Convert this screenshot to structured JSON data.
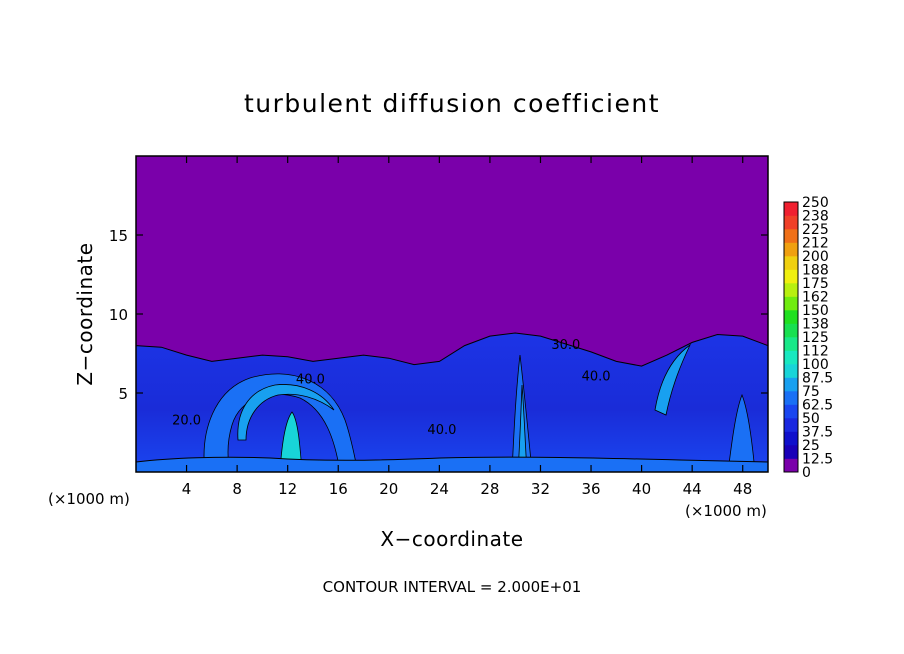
{
  "chart_data": {
    "type": "heatmap",
    "title": "turbulent diffusion coefficient",
    "xlabel": "X−coordinate",
    "ylabel": "Z−coordinate",
    "x_unit_left": "(×1000 m)",
    "x_unit_right": "(×1000 m)",
    "note": "CONTOUR INTERVAL = 2.000E+01",
    "xlim": [
      0,
      50
    ],
    "ylim": [
      0,
      20
    ],
    "x_ticks": [
      4,
      8,
      12,
      16,
      20,
      24,
      28,
      32,
      36,
      40,
      44,
      48
    ],
    "y_ticks": [
      5,
      10,
      15
    ],
    "x_tick_labels": [
      "4",
      "8",
      "12",
      "16",
      "20",
      "24",
      "28",
      "32",
      "36",
      "40",
      "44",
      "48"
    ],
    "y_tick_labels": [
      "5",
      "10",
      "15"
    ],
    "background_value": 0,
    "colorbar": {
      "levels": [
        0,
        12.5,
        25,
        37.5,
        50,
        62.5,
        75,
        87.5,
        100,
        112,
        125,
        138,
        150,
        162,
        175,
        188,
        200,
        212,
        225,
        238,
        250
      ],
      "labels": [
        "0",
        "12.5",
        "25",
        "37.5",
        "50",
        "62.5",
        "75",
        "87.5",
        "100",
        "112",
        "125",
        "138",
        "150",
        "162",
        "175",
        "188",
        "200",
        "212",
        "225",
        "238",
        "250"
      ],
      "colors": [
        "#7a00aa",
        "#1a00b8",
        "#1010cc",
        "#1a28e0",
        "#1a46f0",
        "#1a70f5",
        "#18a0f0",
        "#18d4d8",
        "#18e8c0",
        "#18e888",
        "#18e050",
        "#20e020",
        "#70ec10",
        "#b8f010",
        "#f0f010",
        "#f0d010",
        "#f0a010",
        "#f07018",
        "#f04028",
        "#f02030",
        "#f08080"
      ]
    },
    "boundary_layer_top": [
      [
        0,
        8.0
      ],
      [
        2,
        7.9
      ],
      [
        4,
        7.4
      ],
      [
        6,
        7.0
      ],
      [
        8,
        7.2
      ],
      [
        10,
        7.4
      ],
      [
        12,
        7.3
      ],
      [
        14,
        7.0
      ],
      [
        16,
        7.2
      ],
      [
        18,
        7.4
      ],
      [
        20,
        7.2
      ],
      [
        22,
        6.8
      ],
      [
        24,
        7.0
      ],
      [
        26,
        8.0
      ],
      [
        28,
        8.6
      ],
      [
        30,
        8.8
      ],
      [
        32,
        8.6
      ],
      [
        34,
        8.1
      ],
      [
        36,
        7.6
      ],
      [
        38,
        7.0
      ],
      [
        40,
        6.7
      ],
      [
        42,
        7.4
      ],
      [
        44,
        8.2
      ],
      [
        46,
        8.7
      ],
      [
        48,
        8.6
      ],
      [
        50,
        8.0
      ]
    ],
    "contour_labels": [
      {
        "text": "40.0",
        "x": 13.8,
        "y": 5.6
      },
      {
        "text": "40.0",
        "x": 24.2,
        "y": 2.4
      },
      {
        "text": "40.0",
        "x": 36.4,
        "y": 5.8
      },
      {
        "text": "30.0",
        "x": 34.0,
        "y": 7.8
      },
      {
        "text": "20.0",
        "x": 4.0,
        "y": 3.0
      }
    ]
  }
}
